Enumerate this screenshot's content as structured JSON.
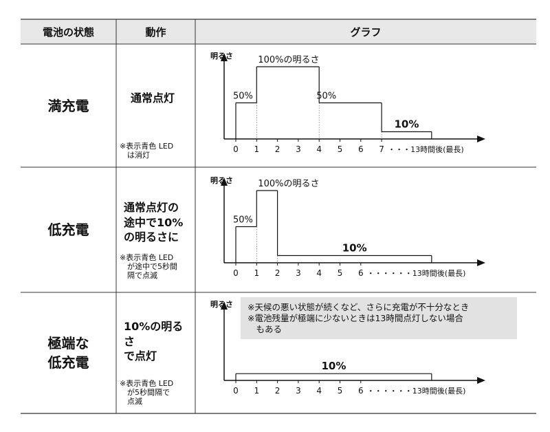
{
  "header": {
    "state": "電池の状態",
    "action": "動作",
    "graph": "グラフ"
  },
  "rows": [
    {
      "state": "満充電",
      "action": "通常点灯",
      "note": "※表示青色 LED\n　は消灯"
    },
    {
      "state": "低充電",
      "action": "通常点灯の\n途中で10%\nの明るさに",
      "note": "※表示青色 LED\n　が途中で5秒間\n　隔で点滅"
    },
    {
      "state": "極端な\n低充電",
      "action": "10%の明るさ\nで点灯",
      "note": "※表示青色 LED\n　が5秒間隔で\n　点滅"
    }
  ],
  "chart_data": [
    {
      "type": "line",
      "step": true,
      "ylabel": "明るさ",
      "x_ticks": [
        "0",
        "1",
        "2",
        "3",
        "4",
        "5",
        "6",
        "7"
      ],
      "x_end_label": "・・・13時間後(最長)",
      "segments": [
        {
          "x0": 0,
          "x1": 1,
          "y": 50,
          "label": "50%"
        },
        {
          "x0": 1,
          "x1": 4,
          "y": 100,
          "label": "100%の明るさ"
        },
        {
          "x0": 4,
          "x1": 7,
          "y": 50,
          "label": "50%"
        },
        {
          "x0": 7,
          "x1": 9.4,
          "y": 10,
          "label": "10%"
        }
      ],
      "ylim": [
        0,
        100
      ]
    },
    {
      "type": "line",
      "step": true,
      "ylabel": "明るさ",
      "x_ticks": [
        "0",
        "1",
        "2",
        "3",
        "4",
        "5",
        "6"
      ],
      "x_end_label": "・・・・・・13時間後(最長)",
      "segments": [
        {
          "x0": 0,
          "x1": 1,
          "y": 50,
          "label": "50%"
        },
        {
          "x0": 1,
          "x1": 2,
          "y": 100,
          "label": "100%の明るさ"
        },
        {
          "x0": 2,
          "x1": 9.4,
          "y": 10,
          "label": "10%"
        }
      ],
      "ylim": [
        0,
        100
      ]
    },
    {
      "type": "line",
      "step": true,
      "ylabel": "明るさ",
      "x_ticks": [
        "0",
        "1",
        "2",
        "3",
        "4",
        "5",
        "6"
      ],
      "x_end_label": "・・・・・・13時間後(最長)",
      "segments": [
        {
          "x0": 0,
          "x1": 9.4,
          "y": 10,
          "label": "10%"
        }
      ],
      "ylim": [
        0,
        100
      ],
      "annotation": [
        "※天候の悪い状態が続くなど、さらに充電が不十分なとき",
        "※電池残量が極端に少ないときは13時間点灯しない場合",
        "　もある"
      ]
    }
  ]
}
